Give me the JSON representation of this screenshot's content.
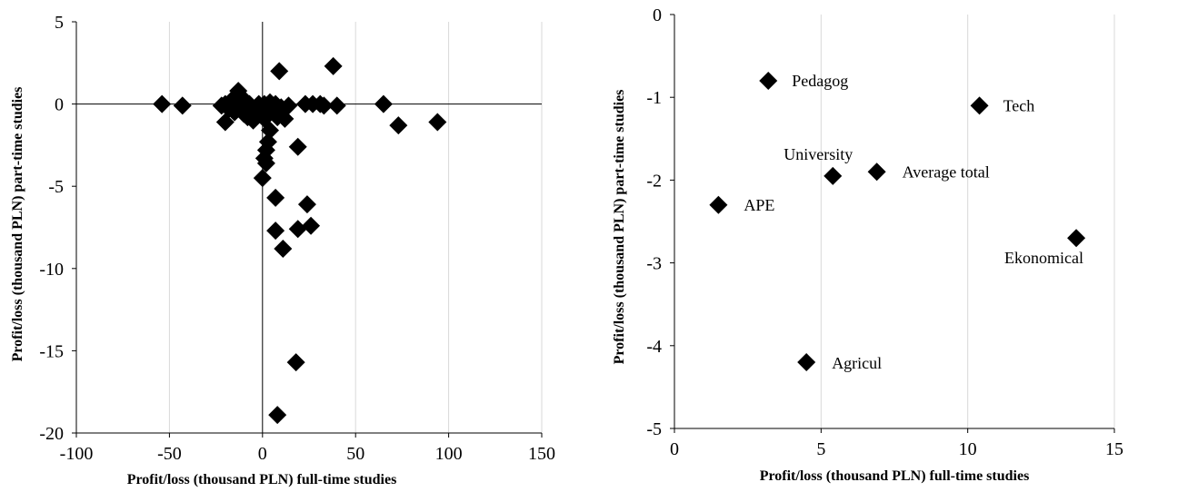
{
  "colors": {
    "marker": "#000000",
    "axis": "#000000"
  },
  "chart_data": [
    {
      "type": "scatter",
      "title": "",
      "xlabel": "Profit/loss (thousand PLN) full-time studies",
      "ylabel": "Profit/loss (thousand PLN) part-time studies",
      "xlim": [
        -100,
        150
      ],
      "ylim": [
        -20,
        5
      ],
      "x_ticks": [
        -100,
        -50,
        0,
        50,
        100,
        150
      ],
      "y_ticks": [
        -20,
        -15,
        -10,
        -5,
        0,
        5
      ],
      "x_tick_labels": [
        "-100",
        "-50",
        "0",
        "50",
        "100",
        "150"
      ],
      "y_tick_labels": [
        "-20",
        "-15",
        "-10",
        "-5",
        "0",
        "5"
      ],
      "vertical_gridlines": true,
      "axes_cross_at_zero": true,
      "marker": "diamond",
      "points": [
        {
          "x": -54,
          "y": 0.0
        },
        {
          "x": -43,
          "y": -0.1
        },
        {
          "x": -22,
          "y": -0.1
        },
        {
          "x": -20,
          "y": 0.0
        },
        {
          "x": -20,
          "y": -1.1
        },
        {
          "x": -18,
          "y": -0.3
        },
        {
          "x": -16,
          "y": 0.3
        },
        {
          "x": -15,
          "y": -0.5
        },
        {
          "x": -14,
          "y": 0.1
        },
        {
          "x": -13,
          "y": 0.8
        },
        {
          "x": -12,
          "y": -0.2
        },
        {
          "x": -11,
          "y": 0.4
        },
        {
          "x": -10,
          "y": -0.6
        },
        {
          "x": -9,
          "y": -0.2
        },
        {
          "x": -8,
          "y": -0.8
        },
        {
          "x": -7,
          "y": 0.0
        },
        {
          "x": -6,
          "y": -0.4
        },
        {
          "x": -5,
          "y": -1.0
        },
        {
          "x": -4,
          "y": -0.3
        },
        {
          "x": -3,
          "y": -0.7
        },
        {
          "x": -2,
          "y": 0.0
        },
        {
          "x": -1,
          "y": -0.5
        },
        {
          "x": 0,
          "y": -0.2
        },
        {
          "x": 1,
          "y": -0.9
        },
        {
          "x": 1,
          "y": 0.0
        },
        {
          "x": 2,
          "y": -0.3
        },
        {
          "x": 3,
          "y": -0.6
        },
        {
          "x": 4,
          "y": 0.1
        },
        {
          "x": 5,
          "y": -0.1
        },
        {
          "x": 6,
          "y": -0.4
        },
        {
          "x": 7,
          "y": 0.0
        },
        {
          "x": 8,
          "y": -0.8
        },
        {
          "x": 10,
          "y": -0.2
        },
        {
          "x": 12,
          "y": -0.9
        },
        {
          "x": 14,
          "y": -0.1
        },
        {
          "x": 9,
          "y": 2.0
        },
        {
          "x": 38,
          "y": 2.3
        },
        {
          "x": 23,
          "y": 0.0
        },
        {
          "x": 27,
          "y": 0.0
        },
        {
          "x": 31,
          "y": 0.0
        },
        {
          "x": 33,
          "y": -0.1
        },
        {
          "x": 40,
          "y": -0.1
        },
        {
          "x": 65,
          "y": 0.0
        },
        {
          "x": 73,
          "y": -1.3
        },
        {
          "x": 94,
          "y": -1.1
        },
        {
          "x": 4,
          "y": -1.6
        },
        {
          "x": 3,
          "y": -2.3
        },
        {
          "x": 2,
          "y": -2.8
        },
        {
          "x": 1,
          "y": -3.3
        },
        {
          "x": 2,
          "y": -3.6
        },
        {
          "x": 0,
          "y": -4.5
        },
        {
          "x": 19,
          "y": -2.6
        },
        {
          "x": 7,
          "y": -5.7
        },
        {
          "x": 24,
          "y": -6.1
        },
        {
          "x": 7,
          "y": -7.7
        },
        {
          "x": 19,
          "y": -7.6
        },
        {
          "x": 26,
          "y": -7.4
        },
        {
          "x": 11,
          "y": -8.8
        },
        {
          "x": 18,
          "y": -15.7
        },
        {
          "x": 8,
          "y": -18.9
        }
      ]
    },
    {
      "type": "scatter",
      "title": "",
      "xlabel": "Profit/loss (thousand PLN) full-time studies",
      "ylabel": "Profit/loss (thousand PLN) part-time studies",
      "xlim": [
        0,
        15
      ],
      "ylim": [
        -5,
        0
      ],
      "x_ticks": [
        0,
        5,
        10,
        15
      ],
      "y_ticks": [
        -5,
        -4,
        -3,
        -2,
        -1,
        0
      ],
      "x_tick_labels": [
        "0",
        "5",
        "10",
        "15"
      ],
      "y_tick_labels": [
        "-5",
        "-4",
        "-3",
        "-2",
        "-1",
        "0"
      ],
      "vertical_gridlines": true,
      "marker": "diamond",
      "points": [
        {
          "label": "Pedagog",
          "x": 3.2,
          "y": -0.8
        },
        {
          "label": "Tech",
          "x": 10.4,
          "y": -1.1
        },
        {
          "label": "University",
          "x": 5.4,
          "y": -1.95
        },
        {
          "label": "Average total",
          "x": 6.9,
          "y": -1.9
        },
        {
          "label": "APE",
          "x": 1.5,
          "y": -2.3
        },
        {
          "label": "Ekonomical",
          "x": 13.7,
          "y": -2.7
        },
        {
          "label": "Agricul",
          "x": 4.5,
          "y": -4.2
        }
      ]
    }
  ]
}
